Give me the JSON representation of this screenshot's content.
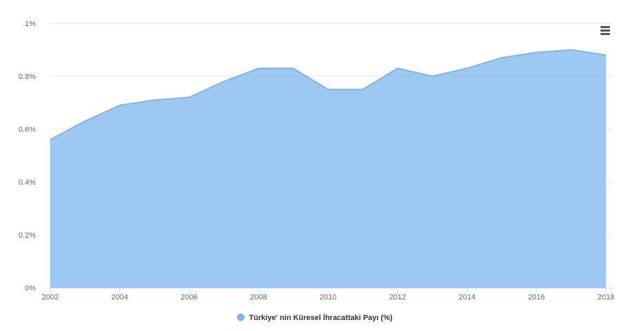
{
  "chart_data": {
    "type": "area",
    "title": "",
    "xlabel": "",
    "ylabel": "",
    "x": [
      2002,
      2003,
      2004,
      2005,
      2006,
      2007,
      2008,
      2009,
      2010,
      2011,
      2012,
      2013,
      2014,
      2015,
      2016,
      2017,
      2018
    ],
    "x_ticks": [
      "2002",
      "2004",
      "2006",
      "2008",
      "2010",
      "2012",
      "2014",
      "2016",
      "2018"
    ],
    "xlim": [
      2002,
      2018
    ],
    "y_ticks": [
      "0%",
      "0.2%",
      "0.4%",
      "0.6%",
      "0.8%",
      "1%"
    ],
    "ylim": [
      0,
      1
    ],
    "grid": true,
    "legend_position": "bottom-center",
    "series": [
      {
        "name": "Türkiye' nin Küresel İhracattaki Payı (%)",
        "color": "#7cb5ec",
        "values": [
          0.56,
          0.63,
          0.69,
          0.71,
          0.72,
          0.78,
          0.83,
          0.83,
          0.75,
          0.75,
          0.83,
          0.8,
          0.83,
          0.87,
          0.89,
          0.9,
          0.88
        ]
      }
    ]
  },
  "menu_icon": "hamburger-menu-icon"
}
